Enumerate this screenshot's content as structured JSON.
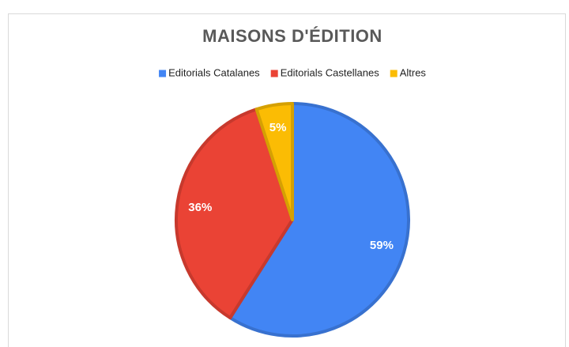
{
  "chart_data": {
    "type": "pie",
    "title": "MAISONS D'ÉDITION",
    "categories": [
      "Editorials Catalanes",
      "Editorials Castellanes",
      "Altres"
    ],
    "values": [
      59,
      36,
      5
    ],
    "value_labels": [
      "59%",
      "36%",
      "5%"
    ],
    "colors": [
      "#4285f4",
      "#ea4335",
      "#fbbc04"
    ],
    "legend": "top"
  }
}
